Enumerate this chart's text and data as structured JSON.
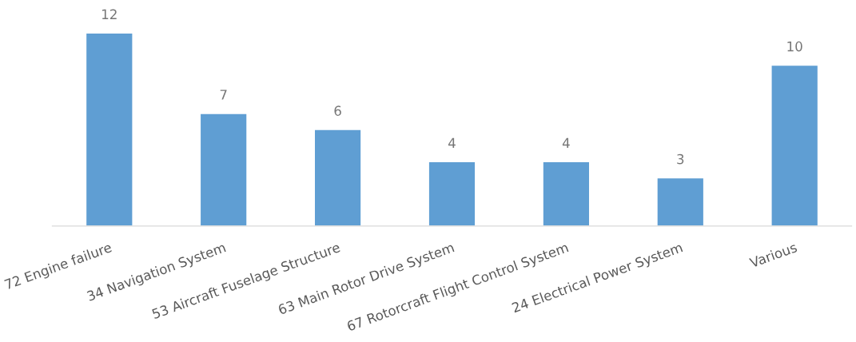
{
  "chart_data": {
    "type": "bar",
    "categories": [
      "72 Engine failure",
      "34 Navigation System",
      "53 Aircraft Fuselage Structure",
      "63 Main Rotor Drive System",
      "67 Rotorcraft Flight Control System",
      "24 Electrical Power System",
      "Various"
    ],
    "values": [
      12,
      7,
      6,
      4,
      4,
      3,
      10
    ],
    "color": "#5f9ed3",
    "data_labels": true,
    "grid": false,
    "legend": false
  }
}
